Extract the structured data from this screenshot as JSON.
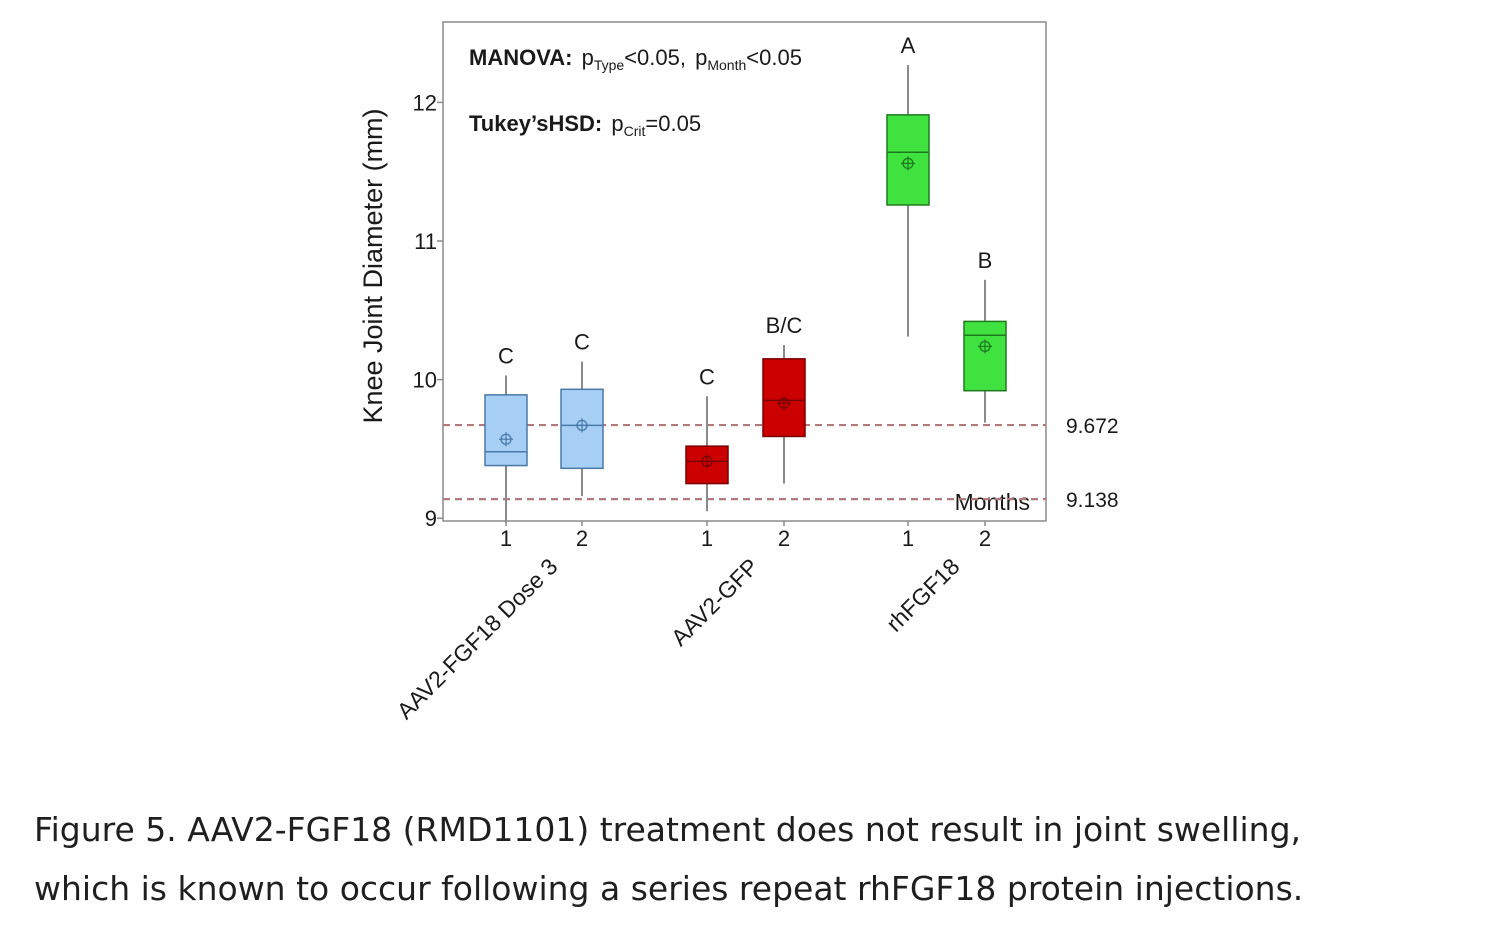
{
  "chart_data": {
    "type": "boxplot",
    "ylabel": "Knee Joint Diameter (mm)",
    "ylim": [
      8.98,
      12.58
    ],
    "yticks": [
      "9",
      "10",
      "11",
      "12"
    ],
    "xlabel": "Months",
    "annotations": {
      "manova": {
        "label": "MANOVA:",
        "p": "p",
        "sub_type": "Type",
        "type_rel": "<0.05,",
        "sub_month": "Month",
        "month_rel": "<0.05"
      },
      "tukey": {
        "label": "Tukey’sHSD:",
        "p": "p",
        "sub": "Crit",
        "rel": "=0.05"
      }
    },
    "reference_lines": [
      {
        "value": 9.672,
        "label": "9.672"
      },
      {
        "value": 9.138,
        "label": "9.138"
      }
    ],
    "groups": [
      {
        "name": "AAV2-FGF18 Dose 3",
        "color": "#a7cff5",
        "stroke": "#4a79a8"
      },
      {
        "name": "AAV2-GFP",
        "color": "#cc0000",
        "stroke": "#7a0000"
      },
      {
        "name": "rhFGF18",
        "color": "#3fe23f",
        "stroke": "#1f7a1f"
      }
    ],
    "boxes": [
      {
        "group": 0,
        "month": "1",
        "whisker_low": 8.97,
        "q1": 9.38,
        "median": 9.48,
        "q3": 9.89,
        "whisker_high": 10.03,
        "mean": 9.57,
        "letter": "C"
      },
      {
        "group": 0,
        "month": "2",
        "whisker_low": 9.16,
        "q1": 9.36,
        "median": 9.67,
        "q3": 9.93,
        "whisker_high": 10.13,
        "mean": 9.67,
        "letter": "C"
      },
      {
        "group": 1,
        "month": "1",
        "whisker_low": 9.05,
        "q1": 9.25,
        "median": 9.41,
        "q3": 9.52,
        "whisker_high": 9.88,
        "mean": 9.41,
        "letter": "C"
      },
      {
        "group": 1,
        "month": "2",
        "whisker_low": 9.25,
        "q1": 9.59,
        "median": 9.85,
        "q3": 10.15,
        "whisker_high": 10.25,
        "mean": 9.83,
        "letter": "B/C"
      },
      {
        "group": 2,
        "month": "1",
        "whisker_low": 10.31,
        "q1": 11.26,
        "median": 11.64,
        "q3": 11.91,
        "whisker_high": 12.27,
        "mean": 11.56,
        "letter": "A"
      },
      {
        "group": 2,
        "month": "2",
        "whisker_low": 9.69,
        "q1": 9.92,
        "median": 10.32,
        "q3": 10.42,
        "whisker_high": 10.72,
        "mean": 10.24,
        "letter": "B"
      }
    ]
  },
  "caption": {
    "line1": "Figure 5. AAV2-FGF18 (RMD1101)  treatment does not result in joint swelling,",
    "line2": "which is known to occur following a series repeat rhFGF18 protein injections."
  }
}
